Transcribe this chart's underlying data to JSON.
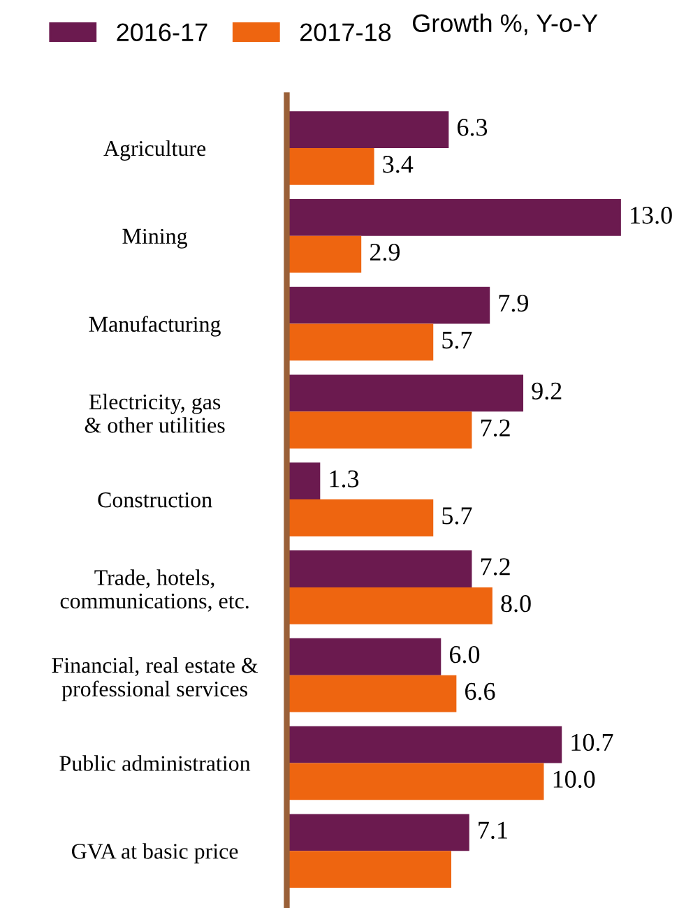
{
  "chart_data": {
    "type": "bar",
    "orientation": "horizontal",
    "legend": "top left",
    "legend_title": "Growth %, Y-o-Y",
    "categories": [
      "Agriculture",
      "Mining",
      "Manufacturing",
      "Electricity, gas\n& other utilities",
      "Construction",
      "Trade, hotels,\ncommunications, etc.",
      "Financial, real estate &\nprofessional services",
      "Public administration",
      "GVA at basic price"
    ],
    "series": [
      {
        "name": "2016-17",
        "color": "#6b1a4f",
        "values": [
          6.3,
          13.0,
          7.9,
          9.2,
          1.3,
          7.2,
          6.0,
          10.7,
          7.1
        ],
        "value_labels": [
          "6.3",
          "13.0",
          "7.9",
          "9.2",
          "1.3",
          "7.2",
          "6.0",
          "10.7",
          "7.1"
        ]
      },
      {
        "name": "2017-18",
        "color": "#ee6510",
        "values": [
          3.4,
          2.9,
          5.7,
          7.2,
          5.7,
          8.0,
          6.6,
          10.0,
          6.4
        ],
        "value_labels": [
          "3.4",
          "2.9",
          "5.7",
          "7.2",
          "5.7",
          "8.0",
          "6.6",
          "10.0",
          null
        ]
      }
    ],
    "grid": false
  }
}
